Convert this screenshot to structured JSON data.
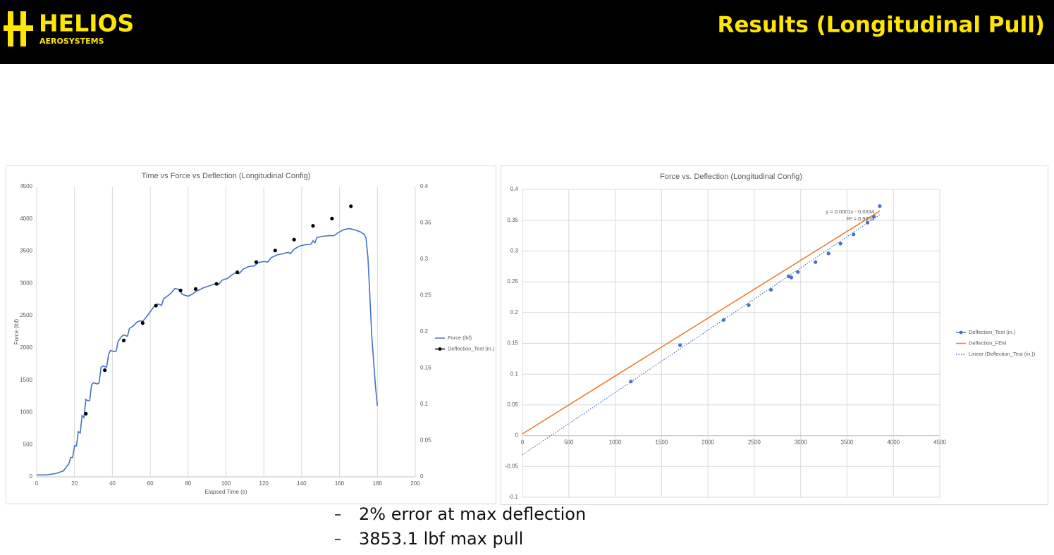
{
  "header": {
    "logo": "HELIOS",
    "logo_sub": "AEROSYSTEMS",
    "title": "Results (Longitudinal Pull)"
  },
  "bullets": [
    "2% error at max deflection",
    "3853.1 lbf max pull"
  ],
  "chart_data": [
    {
      "type": "line",
      "title": "Time vs Force vs Deflection (Longitudinal Config)",
      "x_label": "Elapsed Time (s)",
      "y_label": "Force (lbf)",
      "xlim": [
        0,
        200
      ],
      "xticks": [
        0,
        20,
        40,
        60,
        80,
        100,
        120,
        140,
        160,
        180,
        200
      ],
      "ylim": [
        0,
        4500
      ],
      "yticks": [
        0,
        500,
        1000,
        1500,
        2000,
        2500,
        3000,
        3500,
        4000,
        4500
      ],
      "y2lim": [
        0,
        0.4
      ],
      "y2ticks": [
        0,
        0.05,
        0.1,
        0.15,
        0.2,
        0.25,
        0.3,
        0.35,
        0.4
      ],
      "grid": "x",
      "legend": "right",
      "series": [
        {
          "name": "Force (lbf)",
          "color": "#4472c4",
          "style": "line",
          "x": [
            0,
            5,
            10,
            14,
            17,
            18,
            19,
            20,
            21,
            22,
            23,
            24,
            25,
            26,
            27,
            28,
            29,
            30,
            32,
            33,
            34,
            35,
            37,
            38,
            39,
            41,
            42,
            43,
            45,
            46,
            48,
            49,
            51,
            53,
            55,
            56,
            58,
            60,
            62,
            64,
            66,
            67,
            69,
            71,
            73,
            75,
            77,
            80,
            82,
            84,
            86,
            88,
            91,
            94,
            96,
            98,
            101,
            103,
            105,
            107,
            109,
            112,
            115,
            117,
            120,
            122,
            124,
            127,
            130,
            133,
            134,
            136,
            139,
            142,
            145,
            146,
            147,
            148,
            151,
            155,
            157,
            159,
            162,
            165,
            168,
            171,
            173,
            174,
            175,
            176,
            177,
            178,
            179,
            180
          ],
          "values": [
            30,
            30,
            50,
            90,
            200,
            300,
            300,
            480,
            480,
            700,
            680,
            950,
            920,
            1200,
            1180,
            1180,
            1430,
            1460,
            1440,
            1460,
            1700,
            1720,
            1700,
            1900,
            1960,
            1940,
            1950,
            2100,
            2180,
            2200,
            2180,
            2300,
            2340,
            2400,
            2420,
            2410,
            2480,
            2560,
            2640,
            2680,
            2660,
            2760,
            2800,
            2850,
            2920,
            2910,
            2830,
            2800,
            2830,
            2870,
            2900,
            2930,
            2960,
            2990,
            2980,
            3050,
            3080,
            3130,
            3160,
            3150,
            3220,
            3260,
            3270,
            3320,
            3340,
            3330,
            3400,
            3440,
            3460,
            3480,
            3460,
            3530,
            3580,
            3600,
            3610,
            3660,
            3630,
            3710,
            3730,
            3740,
            3740,
            3780,
            3830,
            3850,
            3830,
            3800,
            3760,
            3700,
            3400,
            2800,
            2200,
            1800,
            1400,
            1100
          ]
        },
        {
          "name": "Deflection_Test (in.)",
          "color": "#000000",
          "style": "scatter",
          "axis": "y2",
          "x": [
            26,
            36,
            46,
            56,
            63,
            76,
            84,
            95,
            106,
            116,
            126,
            136,
            146,
            156,
            166
          ],
          "values": [
            0.087,
            0.147,
            0.188,
            0.212,
            0.236,
            0.257,
            0.259,
            0.266,
            0.282,
            0.296,
            0.312,
            0.327,
            0.346,
            0.356,
            0.373
          ]
        }
      ]
    },
    {
      "type": "scatter",
      "title": "Force vs. Deflection (Longitudinal Config)",
      "xlim": [
        0,
        4500
      ],
      "xticks": [
        0,
        500,
        1000,
        1500,
        2000,
        2500,
        3000,
        3500,
        4000,
        4500
      ],
      "ylim": [
        -0.1,
        0.4
      ],
      "yticks": [
        -0.1,
        -0.05,
        0,
        0.05,
        0.1,
        0.15,
        0.2,
        0.25,
        0.3,
        0.35,
        0.4
      ],
      "grid": "both",
      "legend": "right",
      "annotations": [
        "y = 0.0001x - 0.0334",
        "R² = 0.9955"
      ],
      "series": [
        {
          "name": "Deflection_Test (in.)",
          "color": "#4472c4",
          "style": "scatter",
          "x": [
            1170,
            1700,
            2170,
            2440,
            2680,
            2870,
            2900,
            2970,
            3160,
            3300,
            3430,
            3570,
            3720,
            3790,
            3853
          ],
          "values": [
            0.088,
            0.147,
            0.188,
            0.212,
            0.237,
            0.259,
            0.257,
            0.266,
            0.282,
            0.296,
            0.312,
            0.327,
            0.346,
            0.356,
            0.373
          ]
        },
        {
          "name": "Deflection_FEM",
          "color": "#ed7d31",
          "style": "line",
          "x": [
            0,
            3853
          ],
          "values": [
            0.003,
            0.365
          ]
        },
        {
          "name": "Linear (Deflection_Test (in.))",
          "color": "#4472c4",
          "style": "dotted",
          "x": [
            0,
            3853
          ],
          "values": [
            -0.031,
            0.359
          ]
        }
      ]
    }
  ]
}
